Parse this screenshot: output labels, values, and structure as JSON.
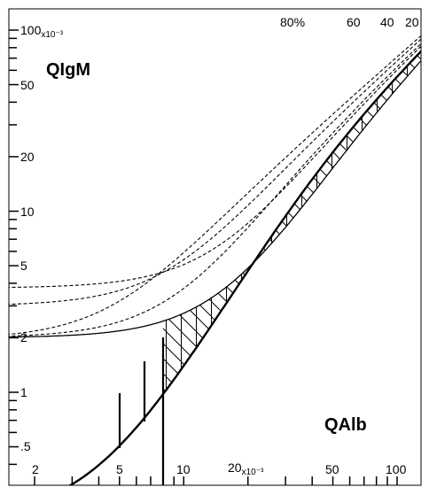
{
  "chart_data": {
    "type": "diagram",
    "scale": "log-log",
    "x_tick_labels": [
      {
        "value": 2,
        "text": "2"
      },
      {
        "value": 5,
        "text": "5"
      },
      {
        "value": 10,
        "text": "10"
      },
      {
        "value": 20,
        "text": "20",
        "suffix": "x10⁻³"
      },
      {
        "value": 50,
        "text": "50"
      },
      {
        "value": 100,
        "text": "100"
      }
    ],
    "y_tick_labels": [
      {
        "value": 0.5,
        "text": ".5"
      },
      {
        "value": 1,
        "text": "1"
      },
      {
        "value": 2,
        "text": "2"
      },
      {
        "value": 5,
        "text": "5"
      },
      {
        "value": 10,
        "text": "10"
      },
      {
        "value": 20,
        "text": "20"
      },
      {
        "value": 50,
        "text": "50"
      },
      {
        "value": 100,
        "text": "100",
        "suffix": "x10⁻³"
      }
    ],
    "xlim": [
      1.4,
      125
    ],
    "ylim": [
      0.3,
      130
    ],
    "regions": [
      {
        "name": "QIgM",
        "label": "QIgM"
      },
      {
        "name": "QAlb",
        "label": "QAlb"
      }
    ],
    "percent_curves": [
      {
        "label": "80%",
        "value": 80
      },
      {
        "label": "60",
        "value": 60
      },
      {
        "label": "40",
        "value": 40
      },
      {
        "label": "20",
        "value": 20
      }
    ],
    "boundary_curve": {
      "style": "solid-bold"
    },
    "lower_curve": {
      "style": "solid"
    },
    "hatched_area": "between boundary curve and lower curve",
    "vertical_markers_x": [
      5,
      6.5,
      8
    ]
  }
}
